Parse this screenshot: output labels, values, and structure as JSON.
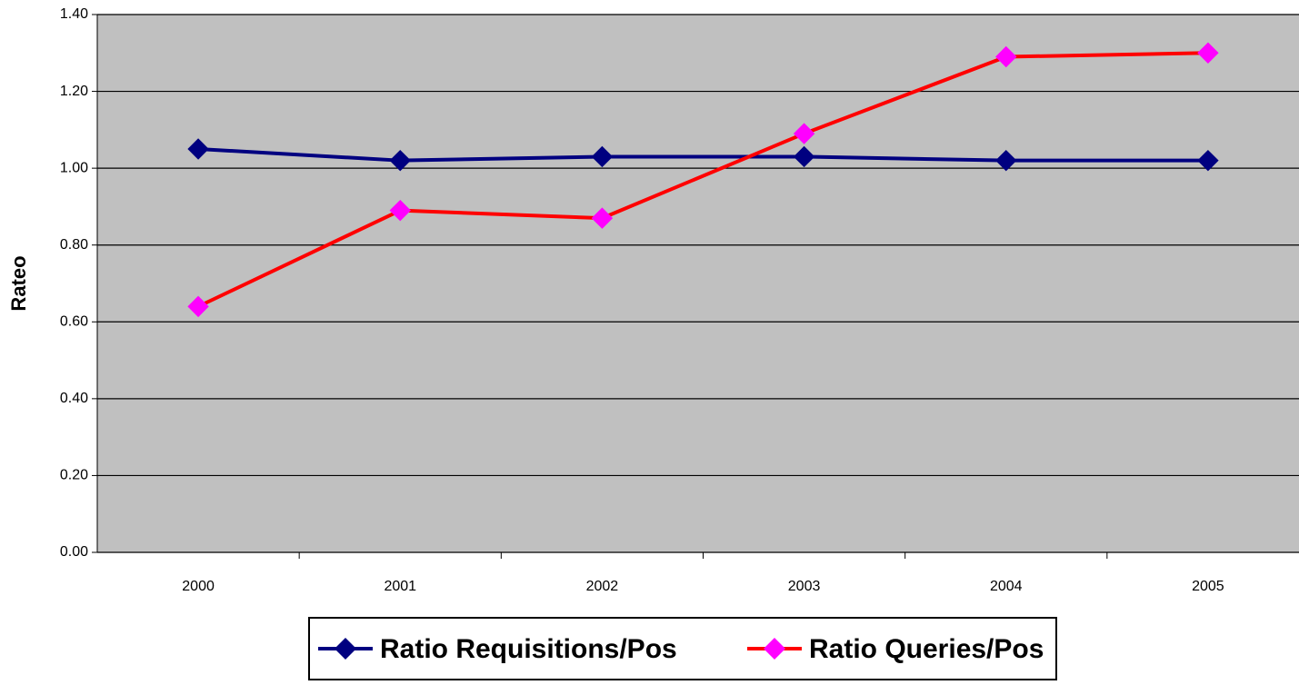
{
  "chart_data": {
    "type": "line",
    "y_label": "Rateo",
    "categories": [
      "2000",
      "2001",
      "2002",
      "2003",
      "2004",
      "2005"
    ],
    "series": [
      {
        "name": "Ratio Requisitions/Pos",
        "color": "#000080",
        "marker_color": "#000080",
        "values": [
          1.05,
          1.02,
          1.03,
          1.03,
          1.02,
          1.02
        ]
      },
      {
        "name": "Ratio Queries/Pos",
        "color": "#ff0000",
        "marker_color": "#ff00ff",
        "values": [
          0.64,
          0.89,
          0.87,
          1.09,
          1.29,
          1.3
        ]
      }
    ],
    "ylim": [
      0,
      1.4
    ],
    "yticks": [
      {
        "value": 0,
        "label": "0.00"
      },
      {
        "value": 0.2,
        "label": "0.20"
      },
      {
        "value": 0.4,
        "label": "0.40"
      },
      {
        "value": 0.6,
        "label": "0.60"
      },
      {
        "value": 0.8,
        "label": "0.80"
      },
      {
        "value": 1.0,
        "label": "1.00"
      },
      {
        "value": 1.2,
        "label": "1.20"
      },
      {
        "value": 1.4,
        "label": "1.40"
      }
    ],
    "grid": true,
    "legend": "bottom",
    "plot_background": "#c0c0c0"
  }
}
